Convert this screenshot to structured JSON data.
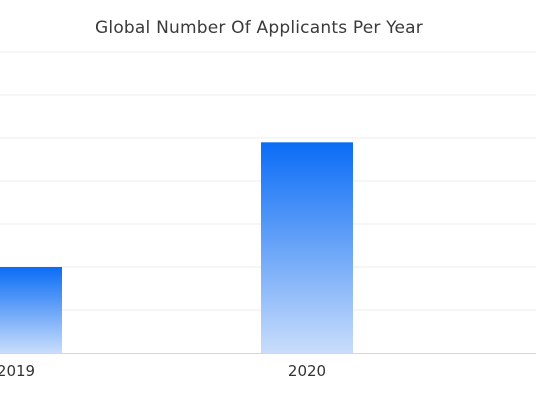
{
  "chart_data": {
    "type": "bar",
    "title": "Global Number Of Applicants Per Year",
    "xlabel": "",
    "ylabel": "",
    "categories": [
      "2019",
      "2020"
    ],
    "values": [
      40,
      98
    ],
    "ylim": [
      0,
      140
    ],
    "grid": true,
    "legend": "none",
    "colors": {
      "bar_top": "#0a6cf5",
      "bar_bottom": "#c9ddfb",
      "grid": "#eeeeee",
      "axis": "#d6d6d6",
      "text": "#333333"
    }
  }
}
